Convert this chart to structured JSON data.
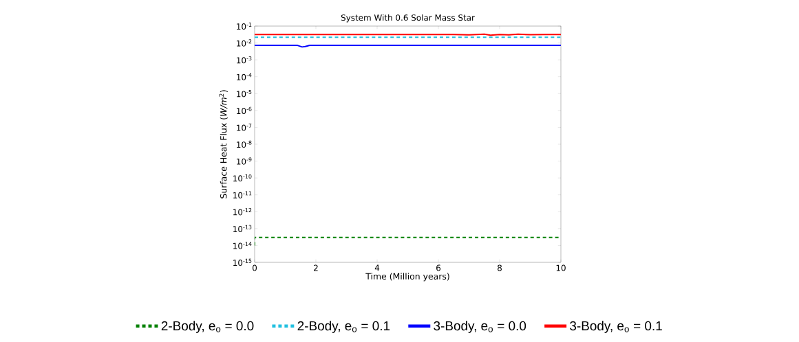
{
  "chart_data": {
    "type": "line",
    "title": "System With 0.6 Solar Mass Star",
    "xlabel": "Time  (Million years)",
    "ylabel": "Surface Heat Flux  (*W/m*$^{2}$)",
    "log": "y",
    "legend": "bottom",
    "grid": false,
    "xlim": [
      0,
      10
    ],
    "xticks": [
      0,
      2,
      4,
      6,
      8,
      10
    ],
    "ylim": [
      1e-15,
      0.1
    ],
    "yticks": [
      {
        "value": 1e-15,
        "label": "10$^{-15}$"
      },
      {
        "value": 1e-14,
        "label": "10$^{-14}$"
      },
      {
        "value": 1e-13,
        "label": "10$^{-13}$"
      },
      {
        "value": 1e-12,
        "label": "10$^{-12}$"
      },
      {
        "value": 1e-11,
        "label": "10$^{-11}$"
      },
      {
        "value": 1e-10,
        "label": "10$^{-10}$"
      },
      {
        "value": 1e-09,
        "label": "10$^{-9}$"
      },
      {
        "value": 1e-08,
        "label": "10$^{-8}$"
      },
      {
        "value": 1e-07,
        "label": "10$^{-7}$"
      },
      {
        "value": 1e-06,
        "label": "10$^{-6}$"
      },
      {
        "value": 1e-05,
        "label": "10$^{-5}$"
      },
      {
        "value": 0.0001,
        "label": "10$^{-4}$"
      },
      {
        "value": 0.001,
        "label": "10$^{-3}$"
      },
      {
        "value": 0.01,
        "label": "10$^{-2}$"
      },
      {
        "value": 0.1,
        "label": "10$^{-1}$"
      }
    ],
    "series": [
      {
        "name": "2-Body, e$_{o}$ = 0.0",
        "color": "#008000",
        "line_style": "dashed",
        "x": [
          0,
          0,
          0.1,
          10
        ],
        "values": [
          1e-14,
          3e-14,
          3e-14,
          3e-14
        ]
      },
      {
        "name": "2-Body, e$_{o}$ = 0.1",
        "color": "#20c0e0",
        "line_style": "dashed",
        "x": [
          0,
          10
        ],
        "values": [
          0.022,
          0.022
        ]
      },
      {
        "name": "3-Body, e$_{o}$ = 0.0",
        "color": "#0000ff",
        "line_style": "solid",
        "x": [
          0,
          1.4,
          1.55,
          1.65,
          1.8,
          10
        ],
        "values": [
          0.0072,
          0.0072,
          0.0058,
          0.0062,
          0.0072,
          0.0072
        ]
      },
      {
        "name": "3-Body, e$_{o}$ = 0.1",
        "color": "#ff0000",
        "line_style": "solid",
        "x": [
          0,
          6.5,
          7,
          7.5,
          7.7,
          8,
          8.3,
          8.6,
          9,
          9.5,
          10
        ],
        "values": [
          0.032,
          0.032,
          0.03,
          0.033,
          0.029,
          0.032,
          0.03,
          0.033,
          0.031,
          0.032,
          0.032
        ]
      }
    ]
  }
}
